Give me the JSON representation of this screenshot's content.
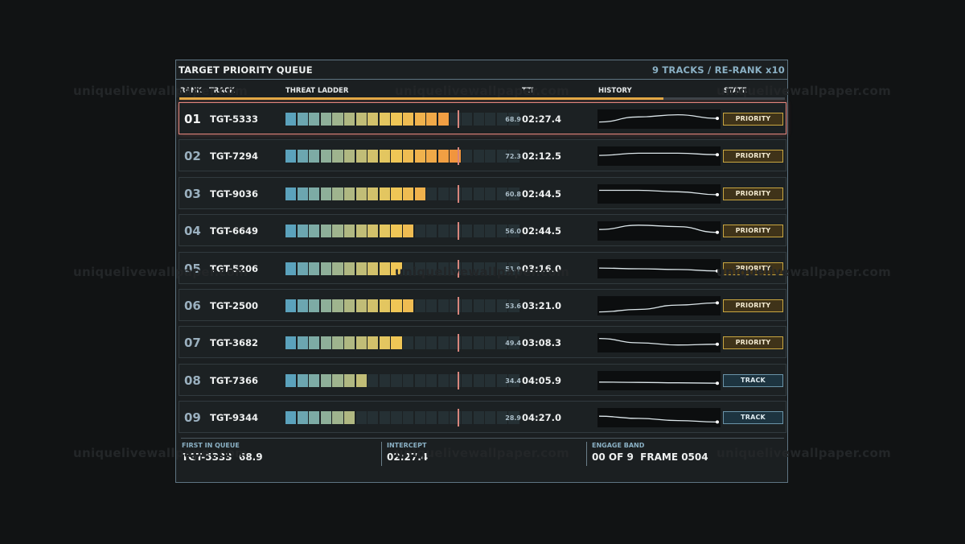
{
  "panel": {
    "title": "TARGET PRIORITY QUEUE",
    "tracks_summary": "9 TRACKS / RE-RANK x10",
    "rerank_progress": 0.8
  },
  "columns": {
    "rank": "RANK",
    "track": "TRACK",
    "threat_ladder": "THREAT LADDER",
    "tti": "TTI",
    "history": "HISTORY",
    "state": "STATE"
  },
  "ladder": {
    "segments": 20,
    "threshold_fraction": 0.725
  },
  "rows": [
    {
      "rank": "01",
      "track": "TGT-5333",
      "score": "68.9",
      "lit": 14,
      "tti": "02:27.4",
      "state": "PRIORITY",
      "state_kind": "priority",
      "active": true,
      "history": [
        0.7,
        0.35,
        0.2,
        0.45
      ]
    },
    {
      "rank": "02",
      "track": "TGT-7294",
      "score": "72.3",
      "lit": 15,
      "tti": "02:12.5",
      "state": "PRIORITY",
      "state_kind": "priority",
      "active": false,
      "history": [
        0.45,
        0.3,
        0.3,
        0.4
      ]
    },
    {
      "rank": "03",
      "track": "TGT-9036",
      "score": "60.8",
      "lit": 12,
      "tti": "02:44.5",
      "state": "PRIORITY",
      "state_kind": "priority",
      "active": false,
      "history": [
        0.25,
        0.25,
        0.35,
        0.55
      ]
    },
    {
      "rank": "04",
      "track": "TGT-6649",
      "score": "56.0",
      "lit": 11,
      "tti": "02:44.5",
      "state": "PRIORITY",
      "state_kind": "priority",
      "active": false,
      "history": [
        0.4,
        0.1,
        0.2,
        0.6
      ]
    },
    {
      "rank": "05",
      "track": "TGT-5206",
      "score": "51.9",
      "lit": 10,
      "tti": "03:16.0",
      "state": "PRIORITY",
      "state_kind": "priority",
      "active": false,
      "history": [
        0.45,
        0.5,
        0.55,
        0.65
      ]
    },
    {
      "rank": "06",
      "track": "TGT-2500",
      "score": "53.6",
      "lit": 11,
      "tti": "03:21.0",
      "state": "PRIORITY",
      "state_kind": "priority",
      "active": false,
      "history": [
        0.92,
        0.75,
        0.45,
        0.3
      ]
    },
    {
      "rank": "07",
      "track": "TGT-3682",
      "score": "49.4",
      "lit": 10,
      "tti": "03:08.3",
      "state": "PRIORITY",
      "state_kind": "priority",
      "active": false,
      "history": [
        0.2,
        0.5,
        0.65,
        0.6
      ]
    },
    {
      "rank": "08",
      "track": "TGT-7366",
      "score": "34.4",
      "lit": 7,
      "tti": "04:05.9",
      "state": "TRACK",
      "state_kind": "track",
      "active": false,
      "history": [
        0.6,
        0.62,
        0.65,
        0.68
      ]
    },
    {
      "rank": "09",
      "track": "TGT-9344",
      "score": "28.9",
      "lit": 6,
      "tti": "04:27.0",
      "state": "TRACK",
      "state_kind": "track",
      "active": false,
      "history": [
        0.4,
        0.55,
        0.7,
        0.8
      ]
    }
  ],
  "footer": {
    "first_label": "FIRST IN QUEUE",
    "first_value": "TGT-5333  68.9",
    "intercept_label": "INTERCEPT",
    "intercept_value": "02:27.4",
    "engage_label": "ENGAGE BAND",
    "engage_value": "00 OF 9  FRAME 0504"
  },
  "watermark": "uniquelivewallpaper.com",
  "colors": {
    "ladder_low": "#5ba2bc",
    "ladder_mid": "#efc958",
    "ladder_high": "#f1953e",
    "ladder_off": "#253034",
    "priority_border": "#c9a640",
    "track_border": "#6a93a8",
    "threshold": "#d8857c",
    "history_line": "#dce6ea"
  }
}
